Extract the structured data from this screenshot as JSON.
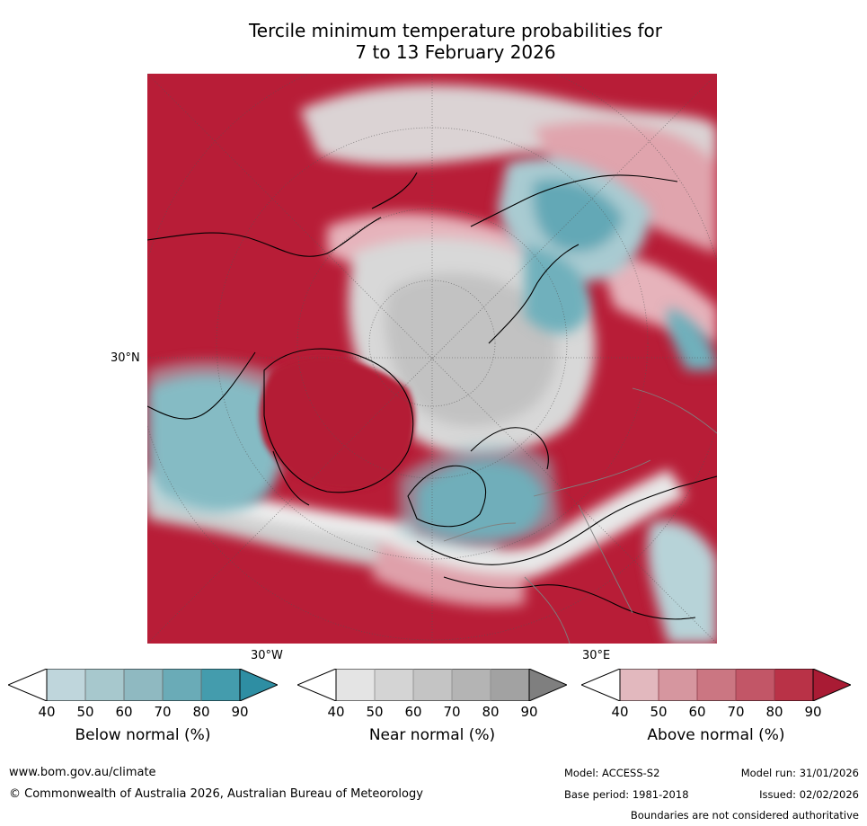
{
  "title": {
    "line1": "Tercile minimum temperature probabilities for",
    "line2": "7 to 13 February 2026"
  },
  "map": {
    "lat_label": "30°N",
    "lon_label_left": "30°W",
    "lon_label_right": "30°E"
  },
  "colorbars": [
    {
      "name": "below",
      "label": "Below normal (%)",
      "ticks": [
        "40",
        "50",
        "60",
        "70",
        "80",
        "90"
      ],
      "colors": [
        "#ffffff",
        "#bfd6dc",
        "#a7c8cd",
        "#8fb9c1",
        "#6aabb7",
        "#449cad",
        "#2e8ea3"
      ]
    },
    {
      "name": "near",
      "label": "Near normal (%)",
      "ticks": [
        "40",
        "50",
        "60",
        "70",
        "80",
        "90"
      ],
      "colors": [
        "#ffffff",
        "#e4e4e4",
        "#d4d4d4",
        "#c4c4c4",
        "#b4b4b4",
        "#a2a2a2",
        "#7f7f7f"
      ]
    },
    {
      "name": "above",
      "label": "Above normal (%)",
      "ticks": [
        "40",
        "50",
        "60",
        "70",
        "80",
        "90"
      ],
      "colors": [
        "#ffffff",
        "#e2b8be",
        "#d6969f",
        "#cb7682",
        "#c25667",
        "#b93247",
        "#a91b34"
      ]
    }
  ],
  "footer": {
    "website": "www.bom.gov.au/climate",
    "copyright": "© Commonwealth of Australia 2026, Australian Bureau of Meteorology",
    "model": "Model: ACCESS-S2",
    "base_period": "Base period: 1981-2018",
    "model_run": "Model run: 31/01/2026",
    "issued": "Issued: 02/02/2026",
    "disclaimer": "Boundaries are not considered authoritative"
  }
}
